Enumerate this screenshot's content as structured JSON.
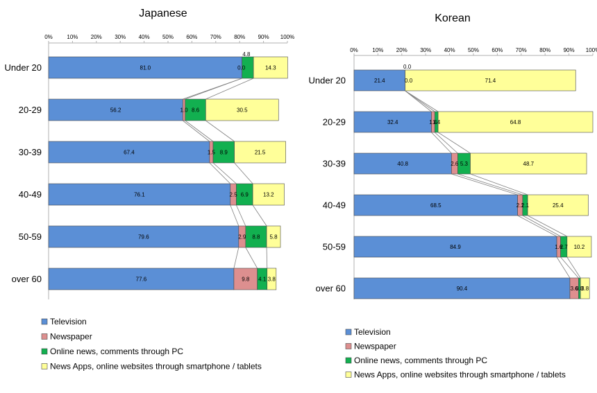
{
  "chart_data": [
    {
      "type": "bar",
      "stacked": true,
      "orientation": "horizontal",
      "title": "Japanese",
      "categories": [
        "Under 20",
        "20-29",
        "30-39",
        "40-49",
        "50-59",
        "over 60"
      ],
      "xticks": [
        "0%",
        "10%",
        "20%",
        "30%",
        "40%",
        "50%",
        "60%",
        "70%",
        "80%",
        "90%",
        "100%"
      ],
      "xlim": [
        0,
        100
      ],
      "series": [
        {
          "name": "Television",
          "values": [
            81.0,
            56.2,
            67.4,
            76.1,
            79.6,
            77.6
          ],
          "labels": [
            "81.0",
            "56.2",
            "67.4",
            "76.1",
            "79.6",
            "77.6"
          ]
        },
        {
          "name": "Newspaper",
          "values": [
            0.0,
            1.0,
            1.5,
            2.5,
            2.9,
            9.8
          ],
          "labels": [
            "0.0",
            "1.0",
            "1.5",
            "2.5",
            "2.9",
            "9.8"
          ]
        },
        {
          "name": "Online news, comments through PC",
          "values": [
            4.8,
            8.6,
            8.9,
            6.9,
            8.8,
            4.1
          ],
          "labels": [
            "4.8",
            "8.6",
            "8.9",
            "6.9",
            "8.8",
            "4.1"
          ]
        },
        {
          "name": "News Apps, online websites through smartphone / tablets",
          "values": [
            14.3,
            30.5,
            21.5,
            13.2,
            5.8,
            3.8
          ],
          "labels": [
            "14.3",
            "30.5",
            "21.5",
            "13.2",
            "5.8",
            "3.8"
          ]
        }
      ],
      "legend_position": "bottom-left"
    },
    {
      "type": "bar",
      "stacked": true,
      "orientation": "horizontal",
      "title": "Korean",
      "categories": [
        "Under 20",
        "20-29",
        "30-39",
        "40-49",
        "50-59",
        "over 60"
      ],
      "xticks": [
        "0%",
        "10%",
        "20%",
        "30%",
        "40%",
        "50%",
        "60%",
        "70%",
        "80%",
        "90%",
        "100%"
      ],
      "xlim": [
        0,
        100
      ],
      "series": [
        {
          "name": "Television",
          "values": [
            21.4,
            32.4,
            40.8,
            68.5,
            84.9,
            90.4
          ],
          "labels": [
            "21.4",
            "32.4",
            "40.8",
            "68.5",
            "84.9",
            "90.4"
          ]
        },
        {
          "name": "Newspaper",
          "values": [
            0.0,
            1.4,
            2.6,
            2.1,
            1.6,
            3.6
          ],
          "labels": [
            "0.0",
            "1.4",
            "2.6",
            "2.1",
            "1.6",
            "3.6"
          ]
        },
        {
          "name": "Online news, comments through PC",
          "values": [
            0.0,
            1.4,
            5.3,
            2.1,
            2.7,
            0.8
          ],
          "labels": [
            "0.0",
            "1.4",
            "5.3",
            "2.1",
            "2.7",
            "0.8"
          ]
        },
        {
          "name": "News Apps, online websites through smartphone / tablets",
          "values": [
            71.4,
            64.8,
            48.7,
            25.4,
            10.2,
            3.8
          ],
          "labels": [
            "71.4",
            "64.8",
            "48.7",
            "25.4",
            "10.2",
            "3.8"
          ]
        }
      ],
      "legend_position": "bottom-left"
    }
  ],
  "colors": {
    "television": "#5b8fd6",
    "newspaper": "#dd8f8f",
    "online_pc": "#12b050",
    "news_apps": "#ffff99",
    "connector": "#7f7f7f",
    "axis": "#b0b0b0"
  }
}
